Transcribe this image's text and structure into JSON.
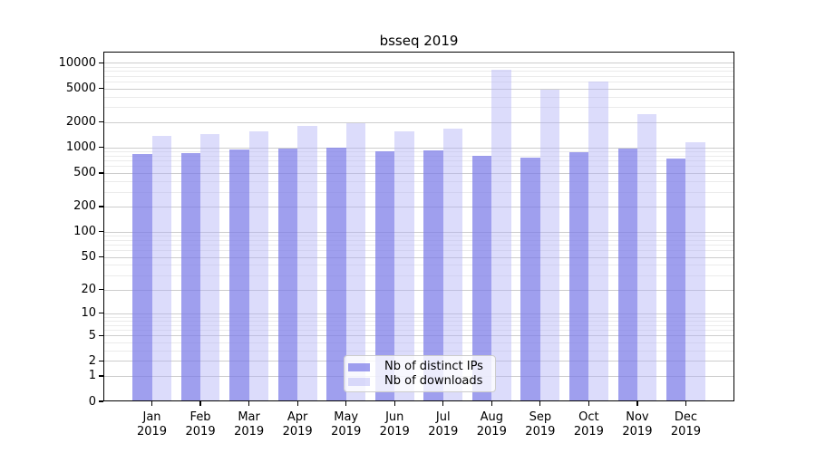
{
  "chart_data": {
    "type": "bar",
    "title": "bsseq 2019",
    "xlabel": "",
    "ylabel": "",
    "categories": [
      "Jan 2019",
      "Feb 2019",
      "Mar 2019",
      "Apr 2019",
      "May 2019",
      "Jun 2019",
      "Jul 2019",
      "Aug 2019",
      "Sep 2019",
      "Oct 2019",
      "Nov 2019",
      "Dec 2019"
    ],
    "series": [
      {
        "name": "Nb of distinct IPs",
        "color": "rgba(122,122,232,0.72)",
        "values": [
          840,
          850,
          940,
          980,
          1000,
          890,
          915,
          800,
          765,
          870,
          960,
          745
        ]
      },
      {
        "name": "Nb of downloads",
        "color": "rgba(178,178,246,0.45)",
        "values": [
          1380,
          1430,
          1540,
          1800,
          1930,
          1550,
          1680,
          8200,
          4850,
          6000,
          2450,
          1160
        ]
      }
    ],
    "yscale": "log10(value+1)",
    "y_ticks": [
      0,
      1,
      2,
      5,
      10,
      20,
      50,
      100,
      200,
      500,
      1000,
      2000,
      5000,
      10000
    ],
    "ylim": [
      0,
      13500
    ],
    "grid": "horizontal major + log minor",
    "legend_position": "lower center",
    "colors": {
      "frame": "#000000",
      "background": "#ffffff",
      "grid_major": "#cdcdcd",
      "grid_minor": "#ebebeb"
    }
  }
}
